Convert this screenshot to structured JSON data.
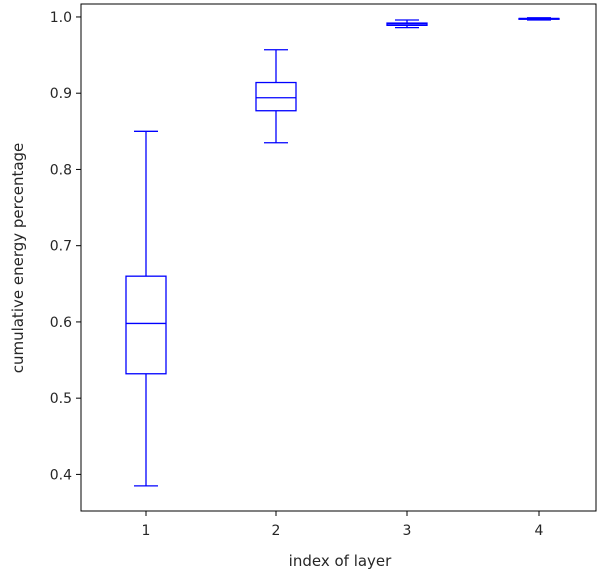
{
  "chart_data": {
    "type": "box",
    "xlabel": "index of layer",
    "ylabel": "cumulative energy percentage",
    "categories": [
      "1",
      "2",
      "3",
      "4"
    ],
    "ylim": [
      0.352,
      1.017
    ],
    "yticks": [
      "0.4",
      "0.5",
      "0.6",
      "0.7",
      "0.8",
      "0.9",
      "1.0"
    ],
    "grid": false,
    "color": "#0000ff",
    "boxes": [
      {
        "label": "1",
        "whisker_low": 0.385,
        "q1": 0.532,
        "median": 0.598,
        "q3": 0.66,
        "whisker_high": 0.85
      },
      {
        "label": "2",
        "whisker_low": 0.835,
        "q1": 0.877,
        "median": 0.894,
        "q3": 0.914,
        "whisker_high": 0.957
      },
      {
        "label": "3",
        "whisker_low": 0.986,
        "q1": 0.989,
        "median": 0.991,
        "q3": 0.992,
        "whisker_high": 0.996
      },
      {
        "label": "4",
        "whisker_low": 0.996,
        "q1": 0.997,
        "median": 0.998,
        "q3": 0.998,
        "whisker_high": 0.999
      }
    ]
  }
}
